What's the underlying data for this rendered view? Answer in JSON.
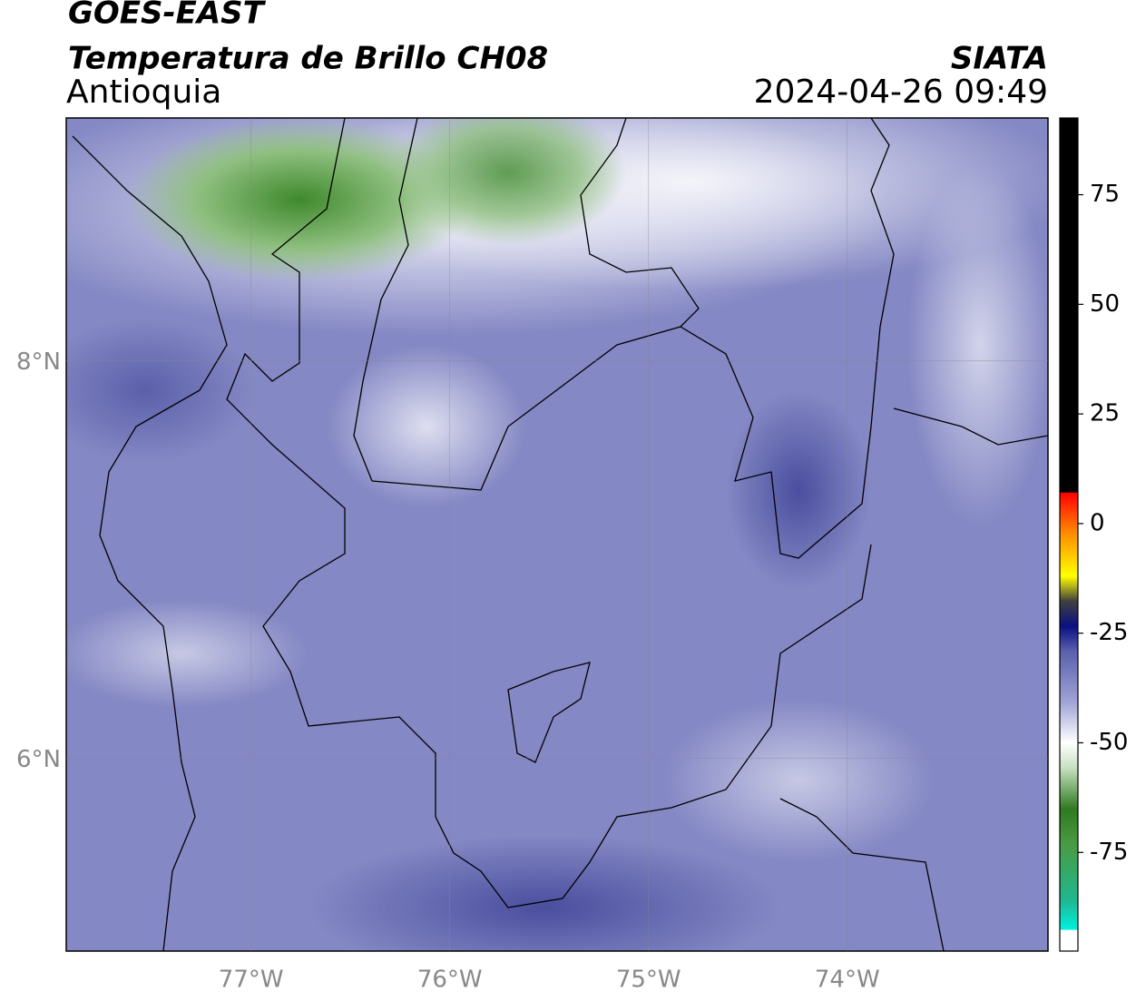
{
  "header": {
    "title": "GOES-EAST",
    "subtitle": "Temperatura de Brillo CH08",
    "region": "Antioquia",
    "source": "SIATA",
    "timestamp": "2024-04-26 09:49"
  },
  "map": {
    "xlim": [
      -77.93,
      -72.99
    ],
    "ylim": [
      5.03,
      9.22
    ],
    "xticks": [
      {
        "value": -77,
        "label": "77°W"
      },
      {
        "value": -76,
        "label": "76°W"
      },
      {
        "value": -75,
        "label": "75°W"
      },
      {
        "value": -74,
        "label": "74°W"
      }
    ],
    "yticks": [
      {
        "value": 8,
        "label": "8°N"
      },
      {
        "value": 6,
        "label": "6°N"
      }
    ]
  },
  "colorbar": {
    "lim": [
      -97.5,
      92.5
    ],
    "ticks": [
      75,
      50,
      25,
      0,
      -25,
      -50,
      -75
    ]
  }
}
